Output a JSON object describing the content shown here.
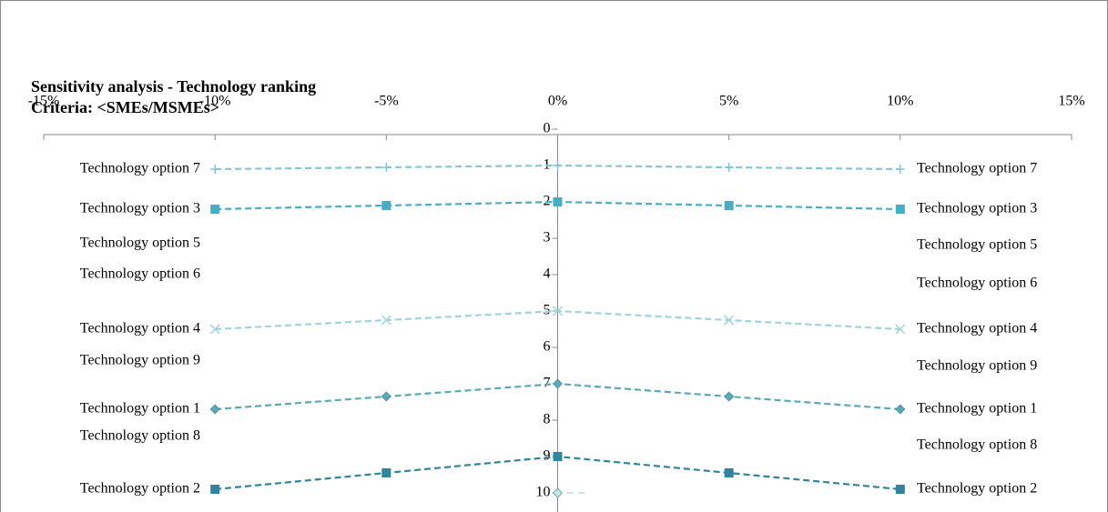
{
  "chart_data": {
    "type": "line",
    "title": "Sensitivity analysis - Technology ranking",
    "subtitle": "Criteria: <SMEs/MSMEs>",
    "x": [
      -10,
      -5,
      0,
      5,
      10
    ],
    "xlim": [
      -15,
      15
    ],
    "xticks": [
      {
        "value": -15,
        "label": "-15%"
      },
      {
        "value": -10,
        "label": "-10%"
      },
      {
        "value": -5,
        "label": "-5%"
      },
      {
        "value": 0,
        "label": "0%"
      },
      {
        "value": 5,
        "label": "5%"
      },
      {
        "value": 10,
        "label": "10%"
      },
      {
        "value": 15,
        "label": "15%"
      }
    ],
    "ylim": [
      0,
      10
    ],
    "yticks": [
      0,
      1,
      2,
      3,
      4,
      5,
      6,
      7,
      8,
      9,
      10
    ],
    "y_inverted": true,
    "series": [
      {
        "name": "Technology option 7",
        "color": "#86c5d6",
        "marker": "plus",
        "values": [
          1.1,
          1.05,
          1,
          1.05,
          1.1
        ]
      },
      {
        "name": "Technology option 3",
        "color": "#4bacc6",
        "marker": "square",
        "values": [
          2.2,
          2.1,
          2,
          2.1,
          2.2
        ]
      },
      {
        "name": "Technology option 5",
        "color": "#4bacc6",
        "marker": "none",
        "values": [
          null,
          null,
          null,
          null,
          null
        ]
      },
      {
        "name": "Technology option 6",
        "color": "#4bacc6",
        "marker": "none",
        "values": [
          null,
          null,
          null,
          null,
          null
        ]
      },
      {
        "name": "Technology option 4",
        "color": "#9fd3e0",
        "marker": "x",
        "values": [
          5.5,
          5.25,
          5,
          5.25,
          5.5
        ]
      },
      {
        "name": "Technology option 9",
        "color": "#4bacc6",
        "marker": "none",
        "values": [
          null,
          null,
          null,
          null,
          null
        ]
      },
      {
        "name": "Technology option 1",
        "color": "#5aa9b8",
        "marker": "diamond",
        "values": [
          7.7,
          7.35,
          7,
          7.35,
          7.7
        ]
      },
      {
        "name": "Technology option 8",
        "color": "#4bacc6",
        "marker": "none",
        "values": [
          null,
          null,
          null,
          null,
          null
        ]
      },
      {
        "name": "Technology option 2",
        "color": "#31849b",
        "marker": "square",
        "values": [
          9.9,
          9.45,
          9,
          9.45,
          9.9
        ]
      },
      {
        "color": "#c9e3ea",
        "marker": "diamond",
        "values": [
          null,
          null,
          10,
          null,
          null
        ]
      }
    ]
  }
}
